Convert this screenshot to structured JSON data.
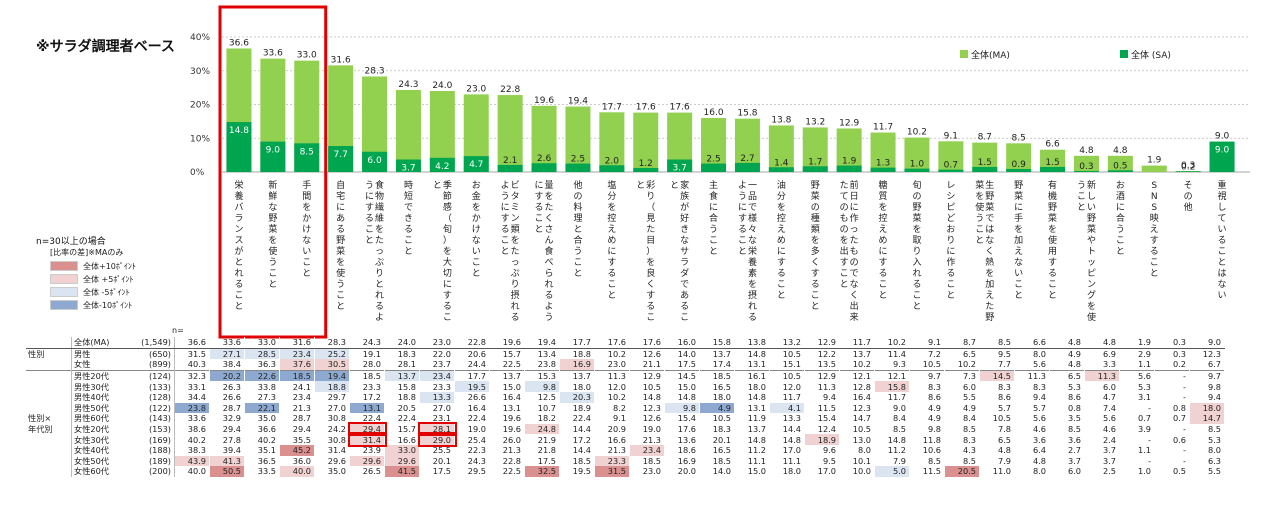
{
  "notes": {
    "title_note": "※サラダ調理者ベース",
    "n_note": "n=30以上の場合",
    "legend_title": "[比率の差]※MAのみ",
    "n_label": "n="
  },
  "diff_legend": [
    {
      "label": "全体+10ﾎﾟｲﾝﾄ",
      "color": "#d9908f"
    },
    {
      "label": "全体 +5ﾎﾟｲﾝﾄ",
      "color": "#f1d2d2"
    },
    {
      "label": "全体 -5ﾎﾟｲﾝﾄ",
      "color": "#dbe5f1"
    },
    {
      "label": "全体-10ﾎﾟｲﾝﾄ",
      "color": "#8ea9cf"
    }
  ],
  "colors": {
    "ma": "#92d050",
    "sa": "#00a550",
    "highlight": "#e00000",
    "pos10": "#d9908f",
    "pos5": "#f1d2d2",
    "neg5": "#dbe5f1",
    "neg10": "#8ea9cf"
  },
  "chart_data": {
    "type": "bar",
    "title": "",
    "ylabel": "",
    "ylim": [
      0,
      40
    ],
    "yticks": [
      "0%",
      "10%",
      "20%",
      "30%",
      "40%"
    ],
    "legend_position": "top-right",
    "categories": [
      "栄養バランスがとれること",
      "新鮮な野菜を使うこと",
      "手間をかけないこと",
      "自宅にある野菜を使うこと",
      "食物繊維をたっぷりとれるようにすること",
      "時短できること",
      "季節感（旬）を大切にすること",
      "お金をかけないこと",
      "ビタミン類をたっぷり摂れるようにすること",
      "量をたくさん食べられるようにすること",
      "他の料理と合うこと",
      "塩分を控えめにすること",
      "彩り（見た目）を良くすること",
      "家族が好きなサラダであること",
      "主食に合うこと",
      "一品で様々な栄養素を摂れるようにすること",
      "油分を控えめにすること",
      "野菜の種類を多くすること",
      "前日に作ったものでなく出来たてのものを出すこと",
      "糖質を控えめにすること",
      "旬の野菜を取り入れること",
      "レシピどおりに作ること",
      "生野菜ではなく熱を加えた野菜を使うこと",
      "野菜に手を加えないこと",
      "有機野菜を使用すること",
      "新しい野菜やトッピングを使うこと",
      "お酒に合うこと",
      "SNS映えすること",
      "その他",
      "重視していることはない"
    ],
    "series": [
      {
        "name": "全体(MA)",
        "values": [
          36.6,
          33.6,
          33.0,
          31.6,
          28.3,
          24.3,
          24.0,
          23.0,
          22.8,
          19.6,
          19.4,
          17.7,
          17.6,
          17.6,
          16.0,
          15.8,
          13.8,
          13.2,
          12.9,
          11.7,
          10.2,
          9.1,
          8.7,
          8.5,
          6.6,
          4.8,
          4.8,
          1.9,
          0.3,
          9.0
        ]
      },
      {
        "name": "全体 (SA)",
        "values": [
          14.8,
          9.0,
          8.5,
          7.7,
          6.0,
          3.7,
          4.2,
          4.7,
          2.1,
          2.6,
          2.5,
          2.0,
          1.2,
          3.7,
          2.5,
          2.7,
          1.4,
          1.7,
          1.9,
          1.3,
          1.0,
          0.7,
          1.5,
          0.9,
          1.5,
          0.3,
          0.5,
          null,
          0.2,
          9.0
        ]
      }
    ],
    "highlighted_categories": [
      0,
      1,
      2
    ]
  },
  "table": {
    "rows": [
      {
        "group": "",
        "label": "全体(MA)",
        "n": "(1,549)",
        "values": [
          "36.6",
          "33.6",
          "33.0",
          "31.6",
          "28.3",
          "24.3",
          "24.0",
          "23.0",
          "22.8",
          "19.6",
          "19.4",
          "17.7",
          "17.6",
          "17.6",
          "16.0",
          "15.8",
          "13.8",
          "13.2",
          "12.9",
          "11.7",
          "10.2",
          "9.1",
          "8.7",
          "8.5",
          "6.6",
          "4.8",
          "4.8",
          "1.9",
          "0.3",
          "9.0"
        ],
        "shade": []
      },
      {
        "group": "性別",
        "label": "男性",
        "n": "(650)",
        "values": [
          "31.5",
          "27.1",
          "28.5",
          "23.4",
          "25.2",
          "19.1",
          "18.3",
          "22.0",
          "20.6",
          "15.7",
          "13.4",
          "18.8",
          "10.2",
          "12.6",
          "14.0",
          "13.7",
          "14.8",
          "10.5",
          "12.2",
          "13.7",
          "11.4",
          "7.2",
          "6.5",
          "9.5",
          "8.0",
          "4.9",
          "6.9",
          "2.9",
          "0.3",
          "12.3"
        ],
        "shade": [
          "",
          "",
          "",
          "",
          "",
          "",
          "",
          "",
          "",
          "",
          "",
          "",
          "",
          "",
          "",
          "",
          "",
          "",
          "",
          "",
          "",
          "",
          "",
          "",
          "",
          "",
          "",
          "",
          "",
          ""
        ]
      },
      {
        "group": "",
        "label": "女性",
        "n": "(899)",
        "values": [
          "40.3",
          "38.4",
          "36.3",
          "37.6",
          "30.5",
          "28.0",
          "28.1",
          "23.7",
          "24.4",
          "22.5",
          "23.8",
          "16.9",
          "23.0",
          "21.1",
          "17.5",
          "17.4",
          "13.1",
          "15.1",
          "13.5",
          "10.2",
          "9.3",
          "10.5",
          "10.2",
          "7.7",
          "5.6",
          "4.8",
          "3.3",
          "1.1",
          "0.2",
          "6.7"
        ],
        "shade": []
      },
      {
        "group": "",
        "label": "男性20代",
        "n": "(124)",
        "values": [
          "32.3",
          "20.2",
          "22.6",
          "18.5",
          "19.4",
          "18.5",
          "13.7",
          "23.4",
          "17.7",
          "13.7",
          "15.3",
          "13.7",
          "11.3",
          "12.9",
          "14.5",
          "18.5",
          "16.1",
          "10.5",
          "12.9",
          "12.1",
          "12.1",
          "9.7",
          "7.3",
          "14.5",
          "11.3",
          "6.5",
          "11.3",
          "5.6",
          "-",
          "9.7"
        ],
        "shade": []
      },
      {
        "group": "",
        "label": "男性30代",
        "n": "(133)",
        "values": [
          "33.1",
          "26.3",
          "33.8",
          "24.1",
          "18.8",
          "23.3",
          "15.8",
          "23.3",
          "19.5",
          "15.0",
          "9.8",
          "18.0",
          "12.0",
          "10.5",
          "15.0",
          "16.5",
          "18.0",
          "12.0",
          "11.3",
          "12.8",
          "15.8",
          "8.3",
          "6.0",
          "8.3",
          "8.3",
          "5.3",
          "6.0",
          "5.3",
          "-",
          "9.8"
        ],
        "shade": []
      },
      {
        "group": "",
        "label": "男性40代",
        "n": "(128)",
        "values": [
          "34.4",
          "26.6",
          "27.3",
          "23.4",
          "29.7",
          "17.2",
          "18.8",
          "13.3",
          "26.6",
          "16.4",
          "12.5",
          "20.3",
          "10.2",
          "14.8",
          "14.8",
          "18.0",
          "14.8",
          "11.7",
          "9.4",
          "16.4",
          "11.7",
          "8.6",
          "5.5",
          "8.6",
          "9.4",
          "8.6",
          "4.7",
          "3.1",
          "-",
          "9.4"
        ],
        "shade": []
      },
      {
        "group": "",
        "label": "男性50代",
        "n": "(122)",
        "values": [
          "23.8",
          "28.7",
          "22.1",
          "21.3",
          "27.0",
          "13.1",
          "20.5",
          "27.0",
          "16.4",
          "13.1",
          "10.7",
          "18.9",
          "8.2",
          "12.3",
          "9.8",
          "4.9",
          "13.1",
          "4.1",
          "11.5",
          "12.3",
          "9.0",
          "4.9",
          "4.9",
          "5.7",
          "5.7",
          "0.8",
          "7.4",
          "-",
          "0.8",
          "18.0"
        ],
        "shade": []
      },
      {
        "group": "性別×",
        "label": "男性60代",
        "n": "(143)",
        "values": [
          "33.6",
          "32.9",
          "35.0",
          "28.7",
          "30.8",
          "22.4",
          "22.4",
          "23.1",
          "22.4",
          "19.6",
          "18.2",
          "22.4",
          "9.1",
          "12.6",
          "15.4",
          "10.5",
          "11.9",
          "13.3",
          "15.4",
          "14.7",
          "8.4",
          "4.9",
          "8.4",
          "10.5",
          "5.6",
          "3.5",
          "5.6",
          "0.7",
          "0.7",
          "14.7"
        ],
        "shade": []
      },
      {
        "group": "年代別",
        "label": "女性20代",
        "n": "(153)",
        "values": [
          "38.6",
          "29.4",
          "36.6",
          "29.4",
          "24.2",
          "29.4",
          "15.7",
          "28.1",
          "19.0",
          "19.6",
          "24.8",
          "14.4",
          "20.9",
          "19.0",
          "17.6",
          "18.3",
          "13.7",
          "14.4",
          "12.4",
          "10.5",
          "8.5",
          "9.8",
          "8.5",
          "7.8",
          "4.6",
          "8.5",
          "4.6",
          "3.9",
          "-",
          "8.5"
        ],
        "shade": []
      },
      {
        "group": "",
        "label": "女性30代",
        "n": "(169)",
        "values": [
          "40.2",
          "27.8",
          "40.2",
          "35.5",
          "30.8",
          "31.4",
          "16.6",
          "29.0",
          "25.4",
          "26.0",
          "21.9",
          "17.2",
          "16.6",
          "21.3",
          "13.6",
          "20.1",
          "14.8",
          "14.8",
          "18.9",
          "13.0",
          "14.8",
          "11.8",
          "8.3",
          "6.5",
          "3.6",
          "3.6",
          "2.4",
          "-",
          "0.6",
          "5.3"
        ],
        "shade": []
      },
      {
        "group": "",
        "label": "女性40代",
        "n": "(188)",
        "values": [
          "38.3",
          "39.4",
          "35.1",
          "45.2",
          "31.4",
          "23.9",
          "33.0",
          "25.5",
          "22.3",
          "21.3",
          "21.8",
          "14.4",
          "21.3",
          "23.4",
          "18.6",
          "16.5",
          "11.2",
          "17.0",
          "9.6",
          "8.0",
          "11.2",
          "10.6",
          "4.3",
          "4.8",
          "6.4",
          "2.7",
          "3.7",
          "1.1",
          "-",
          "8.0"
        ],
        "shade": []
      },
      {
        "group": "",
        "label": "女性50代",
        "n": "(189)",
        "values": [
          "43.9",
          "41.3",
          "36.5",
          "36.0",
          "29.6",
          "29.6",
          "29.6",
          "20.1",
          "24.3",
          "22.8",
          "17.5",
          "18.5",
          "23.3",
          "18.5",
          "16.9",
          "18.5",
          "11.1",
          "11.1",
          "9.5",
          "10.1",
          "7.9",
          "8.5",
          "8.5",
          "7.9",
          "4.8",
          "3.7",
          "3.7",
          "-",
          "-",
          "6.3"
        ],
        "shade": []
      },
      {
        "group": "",
        "label": "女性60代",
        "n": "(200)",
        "values": [
          "40.0",
          "50.5",
          "33.5",
          "40.0",
          "35.0",
          "26.5",
          "41.5",
          "17.5",
          "29.5",
          "22.5",
          "32.5",
          "19.5",
          "31.5",
          "23.0",
          "20.0",
          "14.0",
          "15.0",
          "18.0",
          "17.0",
          "10.0",
          "5.0",
          "11.5",
          "20.5",
          "11.0",
          "8.0",
          "6.0",
          "2.5",
          "1.0",
          "0.5",
          "5.5"
        ],
        "shade": []
      }
    ],
    "cell_highlights": [
      [
        8,
        5
      ],
      [
        9,
        5
      ],
      [
        8,
        7
      ],
      [
        9,
        7
      ]
    ]
  }
}
